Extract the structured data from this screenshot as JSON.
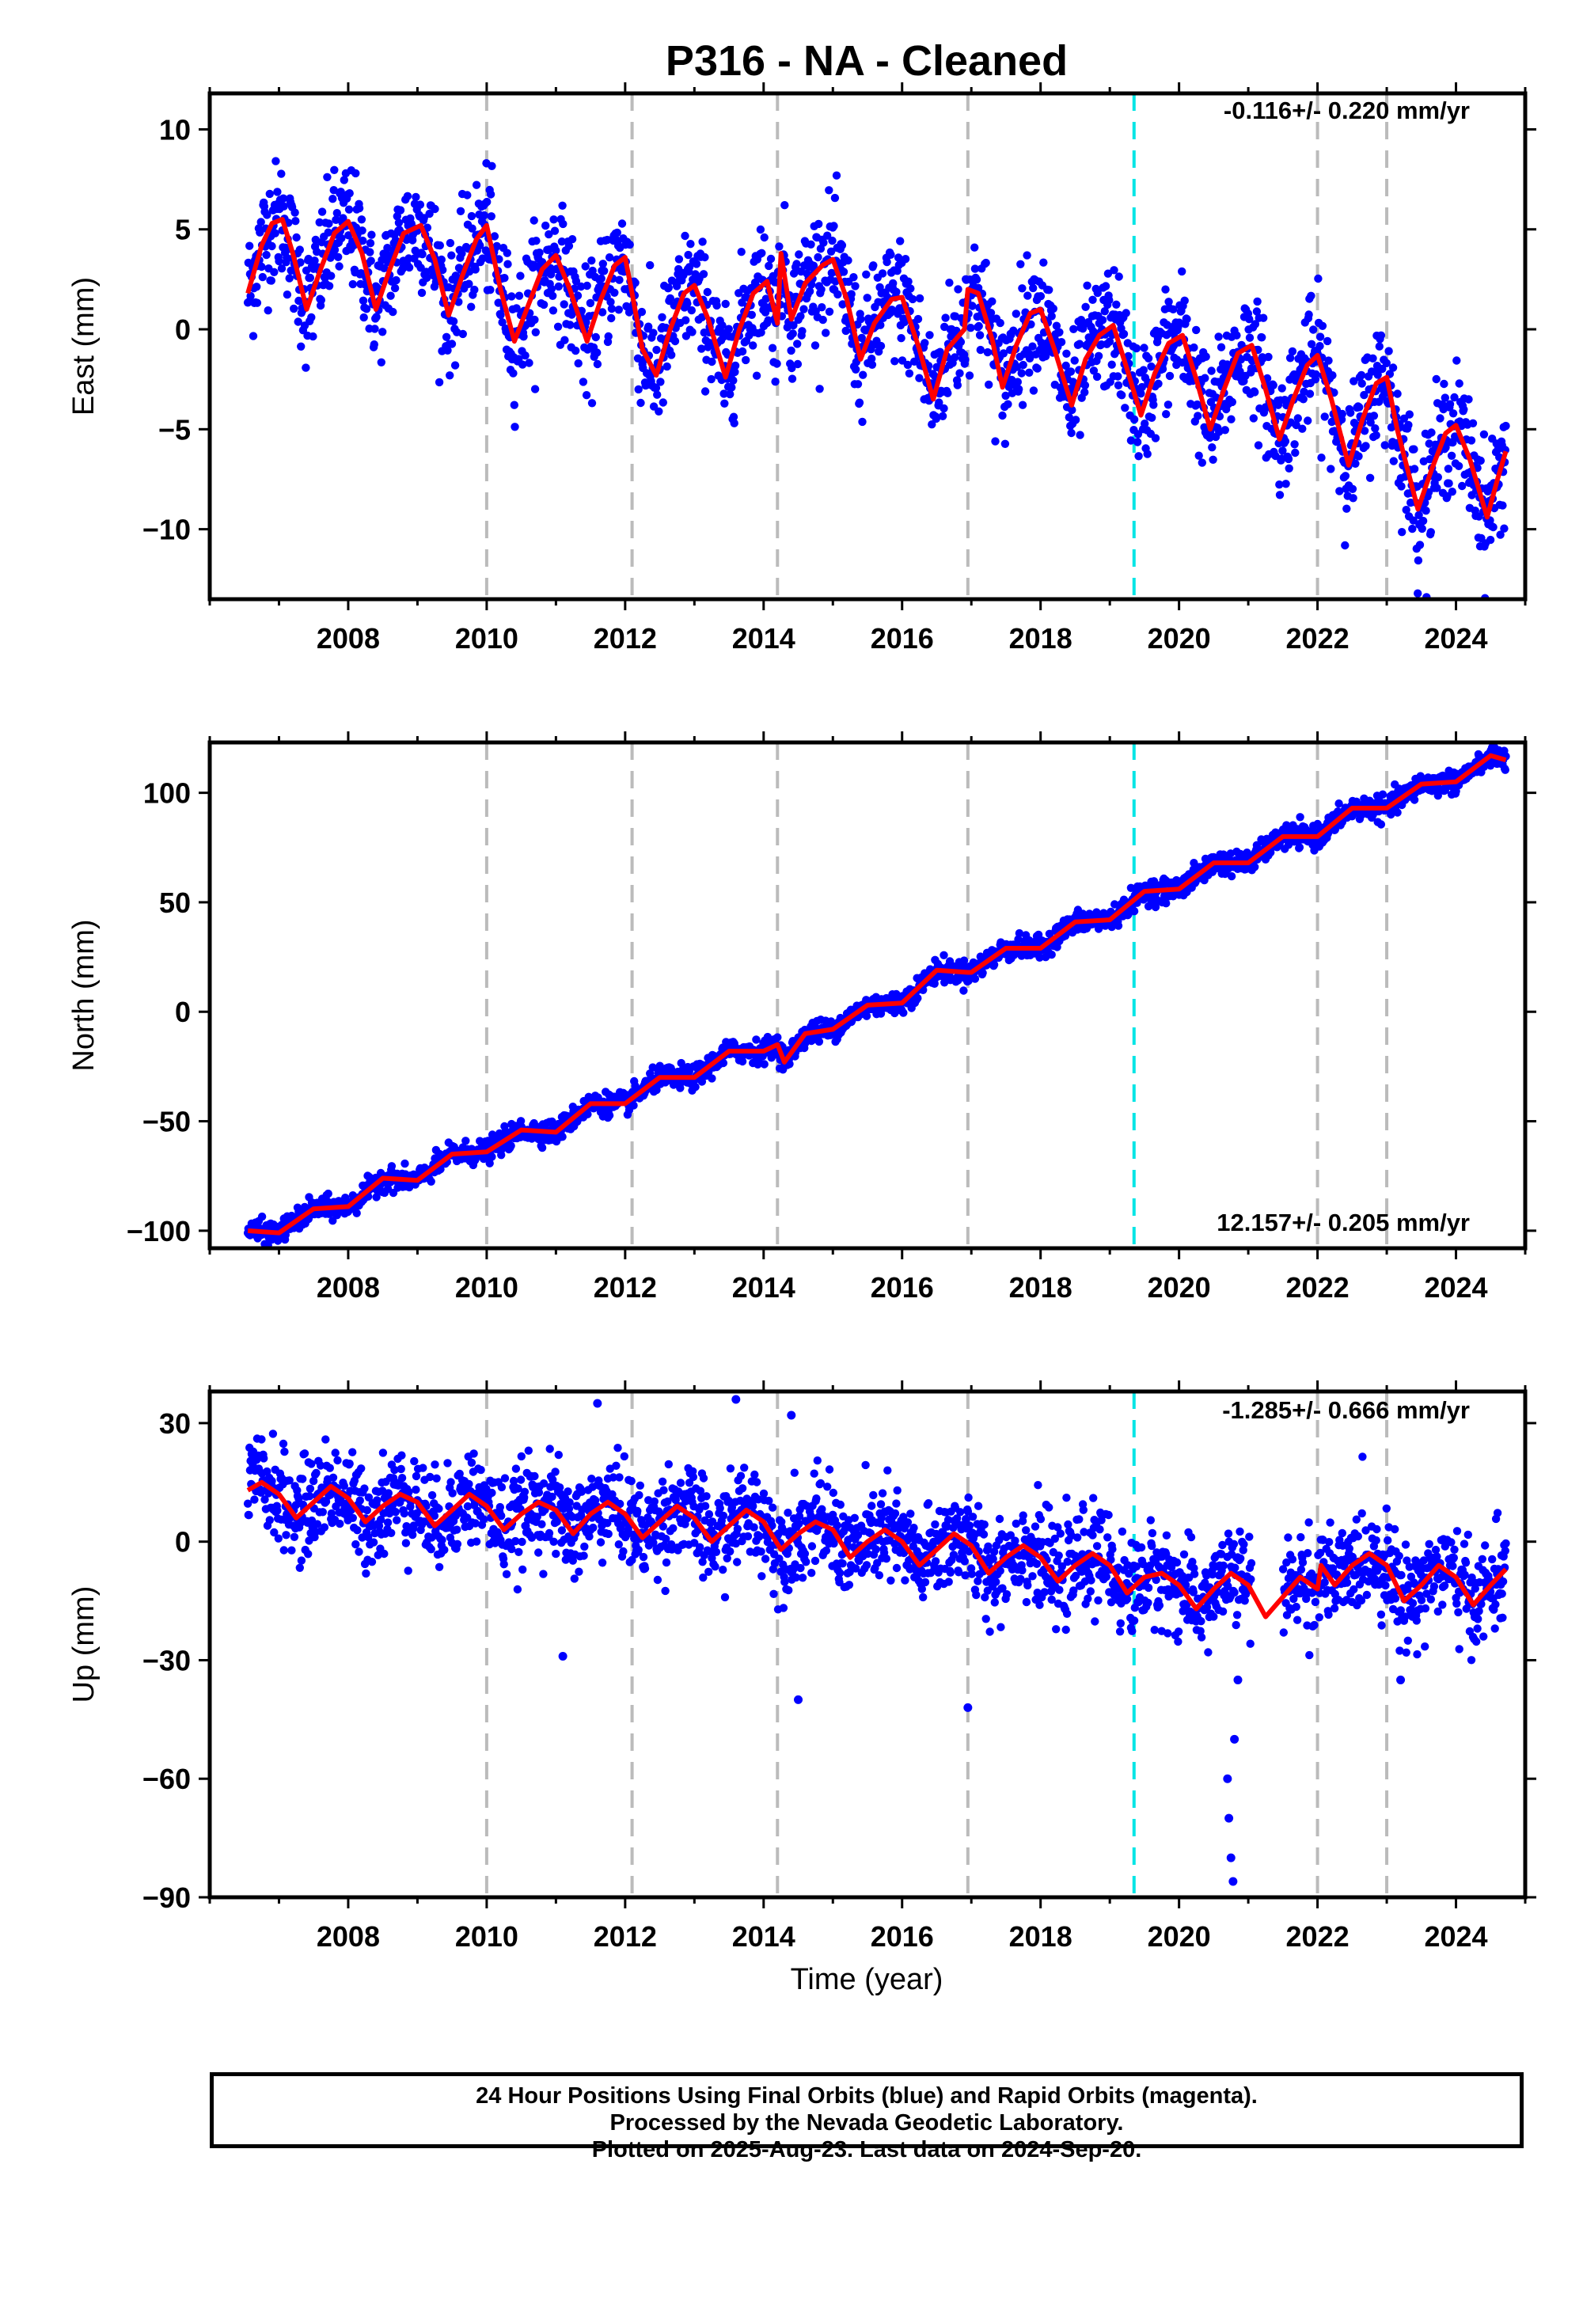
{
  "title": "P316  - NA - Cleaned",
  "xlabel": "Time (year)",
  "footer": {
    "line1": "24 Hour Positions Using Final Orbits (blue) and Rapid Orbits (magenta).",
    "line2": "Processed by the Nevada Geodetic Laboratory.",
    "line3": "Plotted on 2025-Aug-23. Last data on 2024-Sep-20."
  },
  "colors": {
    "data": "#0000ff",
    "model": "#ff0000",
    "event": "#bbbbbb",
    "antenna": "#00e5e5"
  },
  "chart_data": [
    {
      "type": "scatter",
      "component": "east",
      "ylabel": "East (mm)",
      "rate_label": "-0.116+/- 0.220 mm/yr",
      "xlim": [
        2006.0,
        2025.0
      ],
      "ylim": [
        -13.5,
        11.8
      ],
      "x_ticks": [
        2008,
        2010,
        2012,
        2014,
        2016,
        2018,
        2020,
        2022,
        2024
      ],
      "y_ticks": [
        -10,
        -5,
        0,
        5,
        10
      ],
      "event_lines": [
        2010.0,
        2012.1,
        2014.2,
        2016.95,
        2022.0,
        2023.0
      ],
      "antenna_change": [
        2019.35
      ],
      "data_range": [
        2006.55,
        2024.72
      ],
      "model_points": [
        [
          2006.55,
          1.8
        ],
        [
          2006.75,
          4.2
        ],
        [
          2006.9,
          5.3
        ],
        [
          2007.05,
          5.5
        ],
        [
          2007.2,
          3.8
        ],
        [
          2007.4,
          1.0
        ],
        [
          2007.6,
          3.0
        ],
        [
          2007.8,
          4.8
        ],
        [
          2008.0,
          5.4
        ],
        [
          2008.2,
          3.8
        ],
        [
          2008.4,
          1.0
        ],
        [
          2008.6,
          3.0
        ],
        [
          2008.8,
          4.8
        ],
        [
          2009.05,
          5.2
        ],
        [
          2009.25,
          3.5
        ],
        [
          2009.45,
          0.7
        ],
        [
          2009.65,
          2.7
        ],
        [
          2009.85,
          4.5
        ],
        [
          2010.0,
          5.2
        ],
        [
          2010.2,
          2.0
        ],
        [
          2010.4,
          -0.6
        ],
        [
          2010.6,
          1.2
        ],
        [
          2010.8,
          3.0
        ],
        [
          2011.0,
          3.7
        ],
        [
          2011.2,
          2.0
        ],
        [
          2011.45,
          -0.6
        ],
        [
          2011.65,
          1.5
        ],
        [
          2011.85,
          3.2
        ],
        [
          2012.0,
          3.6
        ],
        [
          2012.1,
          1.8
        ],
        [
          2012.25,
          -1.0
        ],
        [
          2012.45,
          -2.3
        ],
        [
          2012.65,
          0.0
        ],
        [
          2012.85,
          1.8
        ],
        [
          2013.0,
          2.2
        ],
        [
          2013.2,
          0.5
        ],
        [
          2013.45,
          -2.4
        ],
        [
          2013.65,
          0.0
        ],
        [
          2013.85,
          1.8
        ],
        [
          2014.05,
          2.4
        ],
        [
          2014.2,
          0.3
        ],
        [
          2014.25,
          3.8
        ],
        [
          2014.4,
          0.5
        ],
        [
          2014.6,
          2.3
        ],
        [
          2014.85,
          3.2
        ],
        [
          2015.0,
          3.5
        ],
        [
          2015.2,
          1.5
        ],
        [
          2015.4,
          -1.5
        ],
        [
          2015.6,
          0.3
        ],
        [
          2015.85,
          1.5
        ],
        [
          2016.0,
          1.6
        ],
        [
          2016.25,
          -1.0
        ],
        [
          2016.45,
          -3.5
        ],
        [
          2016.65,
          -1.0
        ],
        [
          2016.9,
          0.0
        ],
        [
          2016.95,
          2.0
        ],
        [
          2017.1,
          1.8
        ],
        [
          2017.3,
          -0.5
        ],
        [
          2017.45,
          -2.9
        ],
        [
          2017.65,
          -0.8
        ],
        [
          2017.85,
          0.8
        ],
        [
          2018.0,
          1.0
        ],
        [
          2018.2,
          -1.0
        ],
        [
          2018.45,
          -3.8
        ],
        [
          2018.65,
          -1.5
        ],
        [
          2018.85,
          -0.3
        ],
        [
          2019.05,
          0.2
        ],
        [
          2019.25,
          -2.0
        ],
        [
          2019.45,
          -4.3
        ],
        [
          2019.65,
          -2.2
        ],
        [
          2019.85,
          -0.7
        ],
        [
          2020.05,
          -0.3
        ],
        [
          2020.25,
          -2.5
        ],
        [
          2020.45,
          -5.0
        ],
        [
          2020.65,
          -3.0
        ],
        [
          2020.85,
          -1.2
        ],
        [
          2021.05,
          -0.8
        ],
        [
          2021.25,
          -3.0
        ],
        [
          2021.45,
          -5.5
        ],
        [
          2021.65,
          -3.5
        ],
        [
          2021.85,
          -1.8
        ],
        [
          2022.0,
          -1.3
        ],
        [
          2022.2,
          -3.5
        ],
        [
          2022.45,
          -6.8
        ],
        [
          2022.65,
          -4.5
        ],
        [
          2022.85,
          -2.7
        ],
        [
          2023.0,
          -2.4
        ],
        [
          2023.15,
          -5.0
        ],
        [
          2023.45,
          -9.0
        ],
        [
          2023.65,
          -7.0
        ],
        [
          2023.85,
          -5.2
        ],
        [
          2024.0,
          -4.8
        ],
        [
          2024.2,
          -6.5
        ],
        [
          2024.45,
          -9.4
        ],
        [
          2024.6,
          -7.5
        ],
        [
          2024.72,
          -6.1
        ]
      ]
    },
    {
      "type": "scatter",
      "component": "north",
      "ylabel": "North (mm)",
      "rate_label": "12.157+/- 0.205 mm/yr",
      "xlim": [
        2006.0,
        2025.0
      ],
      "ylim": [
        -108,
        123
      ],
      "x_ticks": [
        2008,
        2010,
        2012,
        2014,
        2016,
        2018,
        2020,
        2022,
        2024
      ],
      "y_ticks": [
        -100,
        -50,
        0,
        50,
        100
      ],
      "event_lines": [
        2010.0,
        2012.1,
        2014.2,
        2016.95,
        2022.0,
        2023.0
      ],
      "antenna_change": [
        2019.35
      ],
      "data_range": [
        2006.55,
        2024.72
      ],
      "model_points": [
        [
          2006.55,
          -100
        ],
        [
          2007.0,
          -101
        ],
        [
          2007.5,
          -90
        ],
        [
          2008.0,
          -89
        ],
        [
          2008.5,
          -76
        ],
        [
          2009.0,
          -77
        ],
        [
          2009.5,
          -65
        ],
        [
          2010.0,
          -64
        ],
        [
          2010.5,
          -54
        ],
        [
          2011.0,
          -55
        ],
        [
          2011.5,
          -42
        ],
        [
          2012.0,
          -42
        ],
        [
          2012.5,
          -30
        ],
        [
          2013.0,
          -30
        ],
        [
          2013.5,
          -18
        ],
        [
          2014.0,
          -18
        ],
        [
          2014.2,
          -15
        ],
        [
          2014.3,
          -23
        ],
        [
          2014.6,
          -10
        ],
        [
          2015.0,
          -8
        ],
        [
          2015.5,
          3
        ],
        [
          2016.0,
          4
        ],
        [
          2016.5,
          19
        ],
        [
          2016.95,
          18
        ],
        [
          2017.0,
          18
        ],
        [
          2017.5,
          29
        ],
        [
          2018.0,
          29
        ],
        [
          2018.5,
          41
        ],
        [
          2019.0,
          42
        ],
        [
          2019.5,
          55
        ],
        [
          2020.0,
          56
        ],
        [
          2020.5,
          68
        ],
        [
          2021.0,
          68
        ],
        [
          2021.5,
          80
        ],
        [
          2022.0,
          80
        ],
        [
          2022.5,
          93
        ],
        [
          2023.0,
          93
        ],
        [
          2023.5,
          104
        ],
        [
          2024.0,
          105
        ],
        [
          2024.5,
          117
        ],
        [
          2024.72,
          115
        ]
      ]
    },
    {
      "type": "scatter",
      "component": "up",
      "ylabel": "Up (mm)",
      "rate_label": "-1.285+/- 0.666 mm/yr",
      "xlim": [
        2006.0,
        2025.0
      ],
      "ylim": [
        -90,
        38
      ],
      "x_ticks": [
        2008,
        2010,
        2012,
        2014,
        2016,
        2018,
        2020,
        2022,
        2024
      ],
      "y_ticks": [
        -90,
        -60,
        -30,
        0,
        30
      ],
      "event_lines": [
        2010.0,
        2012.1,
        2014.2,
        2016.95,
        2022.0,
        2023.0
      ],
      "antenna_change": [
        2019.35
      ],
      "data_range": [
        2006.55,
        2024.72
      ],
      "outliers": [
        [
          2011.1,
          -29
        ],
        [
          2011.6,
          35
        ],
        [
          2013.6,
          36
        ],
        [
          2014.4,
          32
        ],
        [
          2014.5,
          -40
        ],
        [
          2016.95,
          -42
        ],
        [
          2023.2,
          -35
        ],
        [
          2020.7,
          -60
        ],
        [
          2020.72,
          -70
        ],
        [
          2020.75,
          -80
        ],
        [
          2020.78,
          -86
        ],
        [
          2020.8,
          -50
        ],
        [
          2020.85,
          -35
        ]
      ],
      "model_points": [
        [
          2006.55,
          13
        ],
        [
          2006.75,
          15
        ],
        [
          2007.0,
          12
        ],
        [
          2007.25,
          6
        ],
        [
          2007.5,
          10
        ],
        [
          2007.75,
          14
        ],
        [
          2008.0,
          11
        ],
        [
          2008.25,
          5
        ],
        [
          2008.5,
          9
        ],
        [
          2008.75,
          12
        ],
        [
          2009.0,
          10
        ],
        [
          2009.25,
          4
        ],
        [
          2009.5,
          8
        ],
        [
          2009.75,
          12
        ],
        [
          2010.0,
          9
        ],
        [
          2010.25,
          3
        ],
        [
          2010.5,
          7
        ],
        [
          2010.75,
          10
        ],
        [
          2011.0,
          8
        ],
        [
          2011.25,
          2
        ],
        [
          2011.5,
          7
        ],
        [
          2011.75,
          10
        ],
        [
          2012.0,
          7
        ],
        [
          2012.25,
          1
        ],
        [
          2012.5,
          5
        ],
        [
          2012.75,
          9
        ],
        [
          2013.0,
          6
        ],
        [
          2013.25,
          0
        ],
        [
          2013.5,
          4
        ],
        [
          2013.75,
          8
        ],
        [
          2014.0,
          5
        ],
        [
          2014.25,
          -2
        ],
        [
          2014.5,
          2
        ],
        [
          2014.75,
          5
        ],
        [
          2015.0,
          3
        ],
        [
          2015.25,
          -4
        ],
        [
          2015.5,
          0
        ],
        [
          2015.75,
          3
        ],
        [
          2016.0,
          0
        ],
        [
          2016.25,
          -6
        ],
        [
          2016.5,
          -2
        ],
        [
          2016.75,
          2
        ],
        [
          2017.0,
          -1
        ],
        [
          2017.25,
          -8
        ],
        [
          2017.5,
          -4
        ],
        [
          2017.75,
          -1
        ],
        [
          2018.0,
          -4
        ],
        [
          2018.25,
          -10
        ],
        [
          2018.5,
          -6
        ],
        [
          2018.75,
          -3
        ],
        [
          2019.0,
          -6
        ],
        [
          2019.25,
          -13
        ],
        [
          2019.5,
          -9
        ],
        [
          2019.75,
          -8
        ],
        [
          2020.0,
          -11
        ],
        [
          2020.25,
          -17
        ],
        [
          2020.5,
          -12
        ],
        [
          2020.75,
          -8
        ],
        [
          2021.0,
          -11
        ],
        [
          2021.25,
          -19
        ],
        [
          2021.5,
          -14
        ],
        [
          2021.75,
          -9
        ],
        [
          2022.0,
          -12
        ],
        [
          2022.05,
          -6
        ],
        [
          2022.25,
          -11
        ],
        [
          2022.5,
          -6
        ],
        [
          2022.75,
          -3
        ],
        [
          2023.0,
          -6
        ],
        [
          2023.25,
          -15
        ],
        [
          2023.5,
          -11
        ],
        [
          2023.75,
          -6
        ],
        [
          2024.0,
          -9
        ],
        [
          2024.25,
          -16
        ],
        [
          2024.5,
          -11
        ],
        [
          2024.72,
          -7
        ]
      ]
    }
  ]
}
